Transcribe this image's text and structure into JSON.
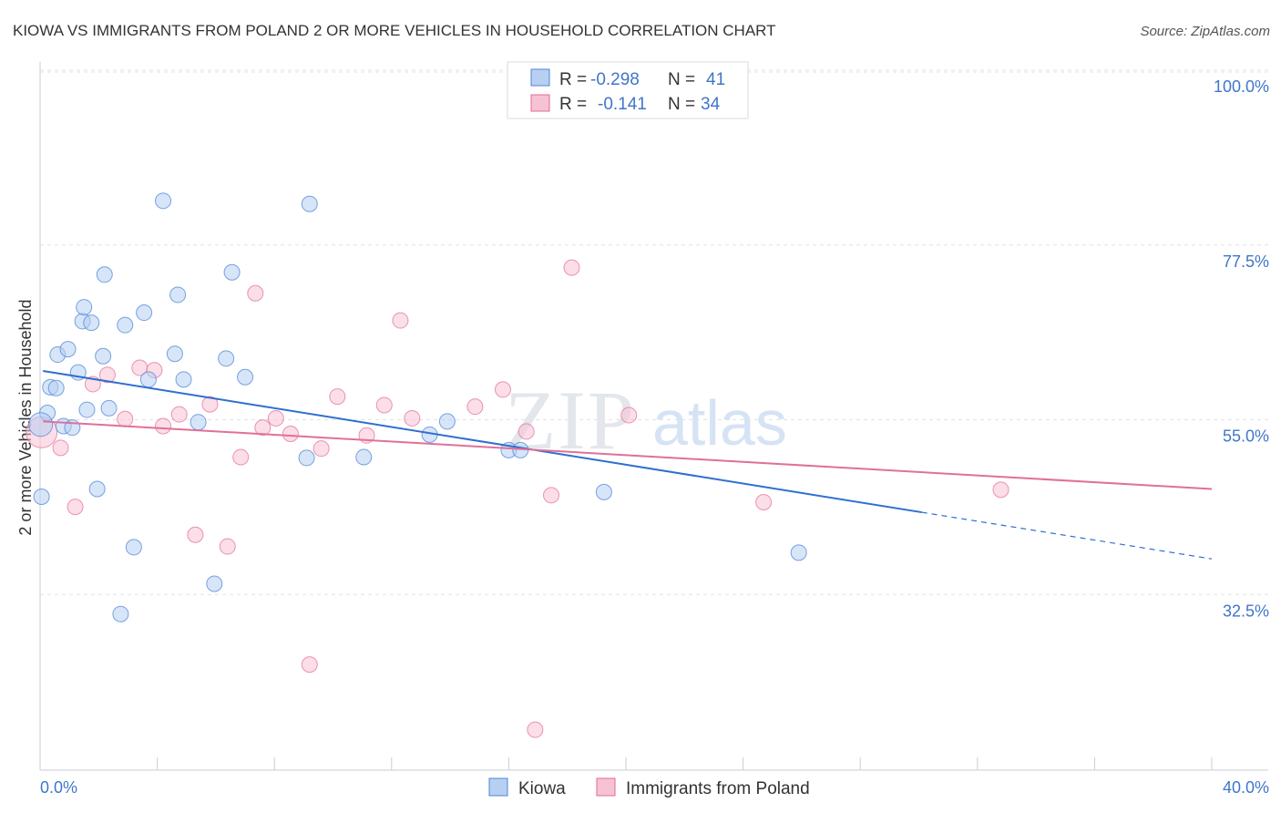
{
  "title": "KIOWA VS IMMIGRANTS FROM POLAND 2 OR MORE VEHICLES IN HOUSEHOLD CORRELATION CHART",
  "source": "Source: ZipAtlas.com",
  "watermark": {
    "zip": "ZIP",
    "atlas": "atlas"
  },
  "colors": {
    "blue": "#4f86d6",
    "blue_fill": "#b7d0f2",
    "blue_line": "#2f6fce",
    "pink": "#e26a97",
    "pink_fill": "#f7c3d4",
    "pink_line": "#e0709a",
    "tick_blue": "#3f76c9",
    "grid": "#dfe3e8"
  },
  "legend": {
    "row1": {
      "r_label": "R = ",
      "r_value": "-0.298",
      "n_label": "N = ",
      "n_value": "41"
    },
    "row2": {
      "r_label": "R = ",
      "r_value": "-0.141",
      "n_label": "N = ",
      "n_value": "34"
    }
  },
  "bottom_legend": {
    "kiowa": "Kiowa",
    "poland": "Immigrants from Poland"
  },
  "chart_data": {
    "type": "scatter",
    "title": "KIOWA VS IMMIGRANTS FROM POLAND 2 OR MORE VEHICLES IN HOUSEHOLD CORRELATION CHART",
    "xlabel": "",
    "ylabel": "2 or more Vehicles in Household",
    "xlim": [
      0,
      40
    ],
    "ylim": [
      12.0,
      102.0
    ],
    "x_tick_labels": [
      {
        "value": 0,
        "label": "0.0%"
      },
      {
        "value": 40,
        "label": "40.0%"
      }
    ],
    "y_tick_labels": [
      {
        "value": 100.0,
        "label": "100.0%"
      },
      {
        "value": 77.5,
        "label": "77.5%"
      },
      {
        "value": 55.0,
        "label": "55.0%"
      },
      {
        "value": 32.5,
        "label": "32.5%"
      }
    ],
    "grid": true,
    "series": [
      {
        "name": "Kiowa",
        "r": -0.298,
        "n": 41,
        "trend": {
          "x0": 0.1,
          "y0": 63.4,
          "x1": 30.1,
          "y1": 45.2,
          "dash_to_x": 40.0,
          "dash_to_y": 39.2
        },
        "points": [
          [
            0.05,
            47.2
          ],
          [
            0.25,
            58.0
          ],
          [
            0.35,
            61.3
          ],
          [
            0.55,
            61.2
          ],
          [
            0.6,
            65.5
          ],
          [
            0.8,
            56.3
          ],
          [
            0.95,
            66.2
          ],
          [
            1.1,
            56.1
          ],
          [
            1.3,
            63.2
          ],
          [
            1.45,
            69.8
          ],
          [
            1.5,
            71.6
          ],
          [
            1.6,
            58.4
          ],
          [
            1.75,
            69.6
          ],
          [
            1.95,
            48.2
          ],
          [
            2.15,
            65.3
          ],
          [
            2.2,
            75.8
          ],
          [
            2.35,
            58.6
          ],
          [
            2.75,
            32.1
          ],
          [
            2.9,
            69.3
          ],
          [
            3.2,
            40.7
          ],
          [
            3.55,
            70.9
          ],
          [
            3.7,
            62.3
          ],
          [
            4.2,
            85.3
          ],
          [
            4.6,
            65.6
          ],
          [
            4.7,
            73.2
          ],
          [
            4.9,
            62.3
          ],
          [
            5.4,
            56.8
          ],
          [
            5.95,
            36.0
          ],
          [
            6.35,
            65.0
          ],
          [
            6.55,
            76.1
          ],
          [
            7.0,
            62.6
          ],
          [
            9.1,
            52.2
          ],
          [
            9.2,
            84.9
          ],
          [
            11.05,
            52.3
          ],
          [
            13.3,
            55.2
          ],
          [
            13.9,
            56.9
          ],
          [
            16.0,
            53.2
          ],
          [
            16.4,
            53.2
          ],
          [
            19.25,
            47.8
          ],
          [
            25.9,
            40.0
          ],
          [
            0.02,
            56.5
          ]
        ]
      },
      {
        "name": "Immigrants from Poland",
        "r": -0.141,
        "n": 34,
        "trend": {
          "x0": 0.1,
          "y0": 56.9,
          "x1": 40.0,
          "y1": 48.2
        },
        "points": [
          [
            0.05,
            55.5
          ],
          [
            0.7,
            53.5
          ],
          [
            1.2,
            45.9
          ],
          [
            1.8,
            61.7
          ],
          [
            2.3,
            62.9
          ],
          [
            2.9,
            57.2
          ],
          [
            3.4,
            63.8
          ],
          [
            3.9,
            63.5
          ],
          [
            4.2,
            56.3
          ],
          [
            4.75,
            57.8
          ],
          [
            5.3,
            42.3
          ],
          [
            5.8,
            59.1
          ],
          [
            6.4,
            40.8
          ],
          [
            6.85,
            52.3
          ],
          [
            7.35,
            73.4
          ],
          [
            7.6,
            56.1
          ],
          [
            8.05,
            57.3
          ],
          [
            8.55,
            55.3
          ],
          [
            9.2,
            25.6
          ],
          [
            9.6,
            53.4
          ],
          [
            10.15,
            60.1
          ],
          [
            11.15,
            55.1
          ],
          [
            11.75,
            59.0
          ],
          [
            12.3,
            69.9
          ],
          [
            12.7,
            57.3
          ],
          [
            14.85,
            58.8
          ],
          [
            15.8,
            61.0
          ],
          [
            16.6,
            55.6
          ],
          [
            16.9,
            17.2
          ],
          [
            17.45,
            47.4
          ],
          [
            18.15,
            76.7
          ],
          [
            20.1,
            57.7
          ],
          [
            24.7,
            46.5
          ],
          [
            32.8,
            48.1
          ]
        ]
      }
    ]
  }
}
